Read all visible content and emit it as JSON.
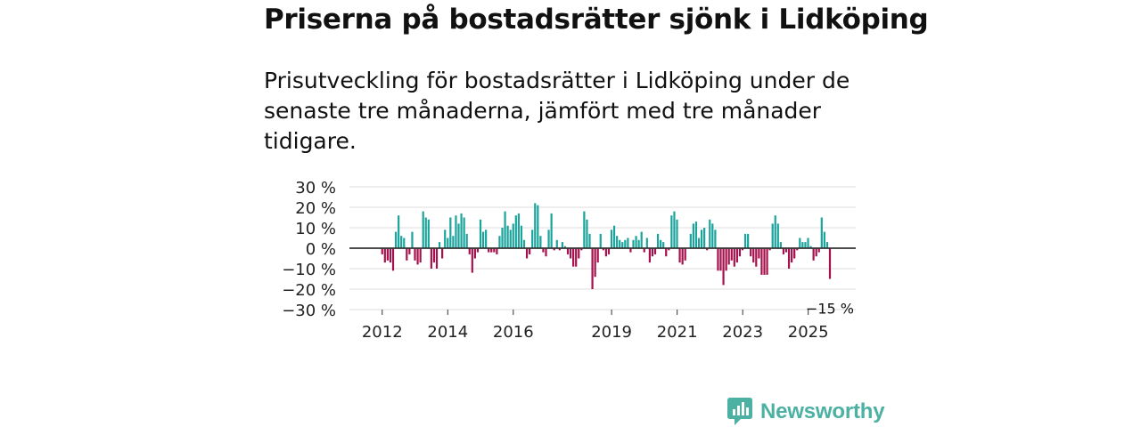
{
  "title": "Priserna på bostadsrätter sjönk i Lidköping",
  "subtitle": "Prisutveckling för bostadsrätter i Lidköping under de senaste tre månaderna, jämfört med tre månader tidigare.",
  "brand": "Newsworthy",
  "colors": {
    "positive": "#1ba39c",
    "negative": "#a5114c",
    "grid": "#dddddd",
    "zero": "#333333",
    "brand": "#4cb0a3"
  },
  "chart_data": {
    "type": "bar",
    "title": "Priserna på bostadsrätter sjönk i Lidköping",
    "ylabel": "",
    "xlabel": "",
    "ylim": [
      -30,
      30
    ],
    "y_ticks": [
      30,
      20,
      10,
      0,
      -10,
      -20,
      -30
    ],
    "y_tick_labels": [
      "30 %",
      "20 %",
      "10 %",
      "0 %",
      "−10 %",
      "−20 %",
      "−30 %"
    ],
    "x_range": [
      2011.0,
      2026.45
    ],
    "x_ticks": [
      2012,
      2014,
      2016,
      2019,
      2021,
      2023,
      2025
    ],
    "x_tick_labels": [
      "2012",
      "2014",
      "2016",
      "2019",
      "2021",
      "2023",
      "2025"
    ],
    "annotation": {
      "text": "−15 %",
      "x": 2025.9,
      "y": -15
    },
    "series": [
      {
        "name": "Prisutveckling",
        "start_year": 2012.0,
        "step": 0.0833,
        "values": [
          -3,
          -7,
          -6,
          -7,
          -11,
          8,
          16,
          6,
          5,
          -6,
          -3,
          8,
          -6,
          -8,
          -7,
          18,
          15,
          14,
          -10,
          -7,
          -10,
          3,
          -5,
          9,
          5,
          15,
          6,
          16,
          12,
          17,
          15,
          7,
          -3,
          -12,
          -5,
          -2,
          14,
          8,
          9,
          -2,
          -2,
          -2,
          -3,
          6,
          10,
          18,
          11,
          9,
          12,
          16,
          17,
          11,
          4,
          -5,
          -3,
          9,
          22,
          21,
          6,
          -2,
          -4,
          9,
          17,
          -1,
          4,
          -1,
          3,
          1,
          -3,
          -5,
          -9,
          -9,
          -5,
          -1,
          18,
          14,
          7,
          -20,
          -14,
          -7,
          7,
          -1,
          -4,
          -3,
          9,
          11,
          6,
          4,
          3,
          4,
          5,
          -2,
          4,
          6,
          4,
          8,
          -2,
          5,
          -7,
          -4,
          -3,
          7,
          4,
          3,
          -4,
          -1,
          16,
          18,
          14,
          -7,
          -8,
          -6,
          0,
          7,
          12,
          13,
          5,
          9,
          10,
          -1,
          14,
          12,
          9,
          -11,
          -11,
          -18,
          -11,
          -8,
          -6,
          -9,
          -7,
          -4,
          -1,
          7,
          7,
          -4,
          -7,
          -9,
          -5,
          -13,
          -13,
          -13,
          -1,
          12,
          16,
          12,
          3,
          -3,
          -2,
          -10,
          -7,
          -5,
          -1,
          5,
          3,
          3,
          5,
          1,
          -6,
          -4,
          -2,
          15,
          8,
          3,
          -15
        ]
      }
    ]
  }
}
